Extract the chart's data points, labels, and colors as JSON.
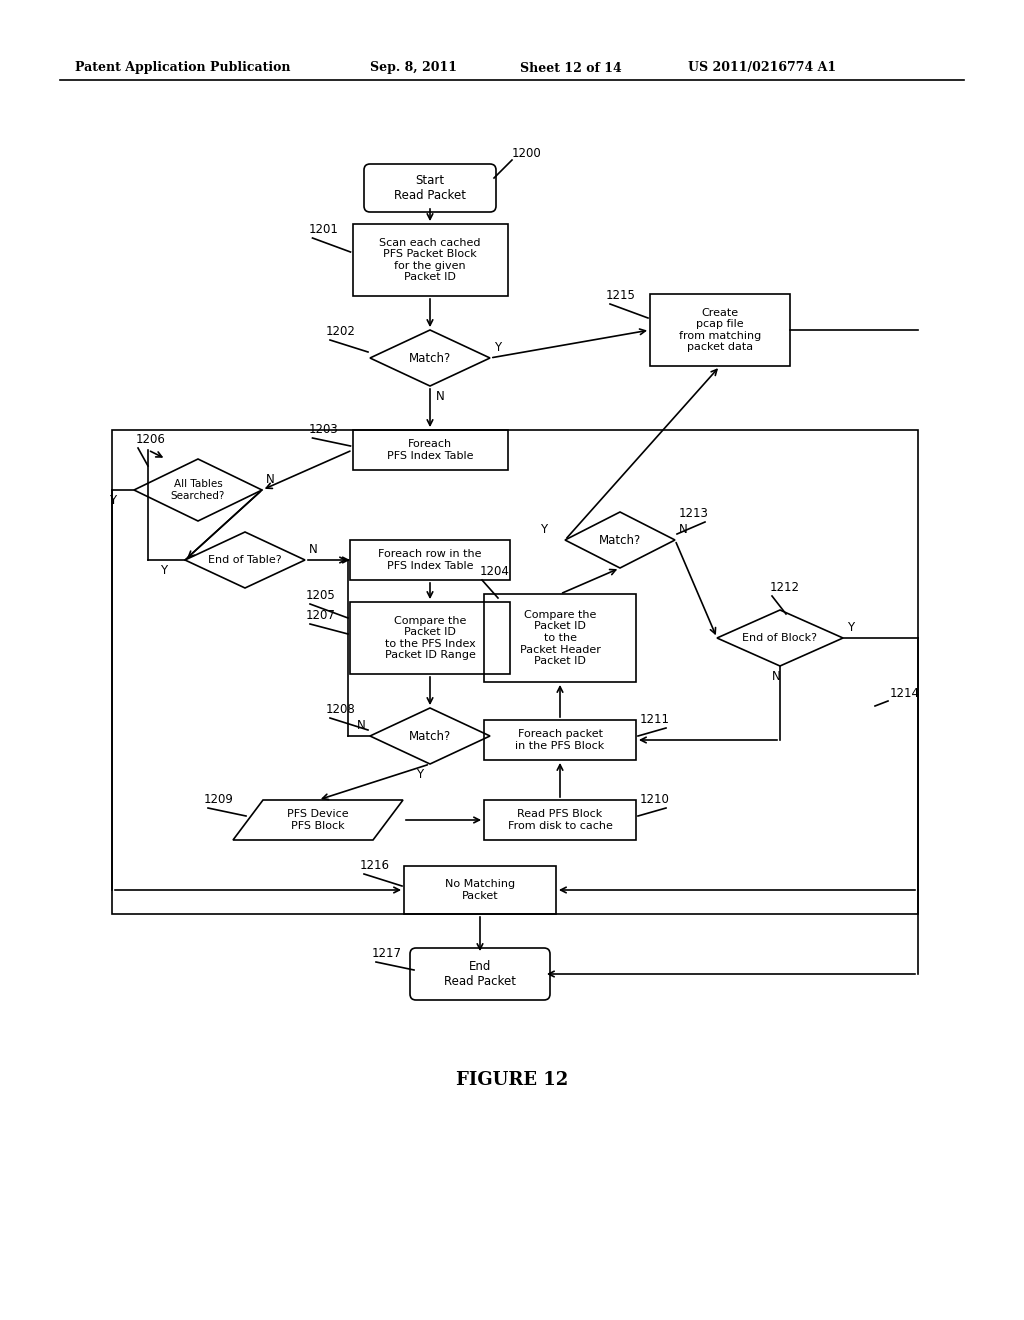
{
  "title_header": "Patent Application Publication",
  "date_header": "Sep. 8, 2011",
  "sheet_header": "Sheet 12 of 14",
  "patent_header": "US 2011/0216774 A1",
  "figure_label": "FIGURE 12",
  "bg_color": "#ffffff",
  "line_color": "#000000"
}
